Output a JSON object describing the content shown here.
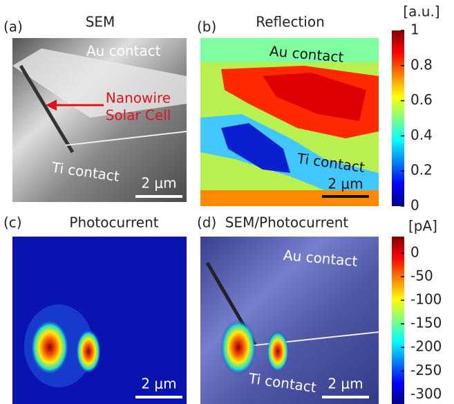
{
  "panels": [
    {
      "label": "(a)",
      "title": "SEM",
      "annotations": [
        "Au contact",
        "Nanowire",
        "Solar Cell",
        "Ti contact"
      ],
      "scale_bar": "2 μm"
    },
    {
      "label": "(b)",
      "title": "Reflection",
      "annotations": [
        "Au contact",
        "Ti contact"
      ],
      "scale_bar": "2 μm"
    },
    {
      "label": "(c)",
      "title": "Photocurrent",
      "scale_bar": "2 μm"
    },
    {
      "label": "(d)",
      "title": "SEM/Photocurrent",
      "annotations": [
        "Au contact",
        "Ti contact"
      ],
      "scale_bar": "2 μm"
    }
  ],
  "colorbars": [
    {
      "unit": "[a.u.]",
      "lim": [
        0,
        1
      ],
      "ticks": [
        1,
        0.8,
        0.6,
        0.4,
        0.2,
        0
      ]
    },
    {
      "unit": "[pA]",
      "lim": [
        -320,
        35
      ],
      "ticks": [
        0,
        -50,
        -100,
        -150,
        -200,
        -250,
        -300
      ]
    }
  ]
}
